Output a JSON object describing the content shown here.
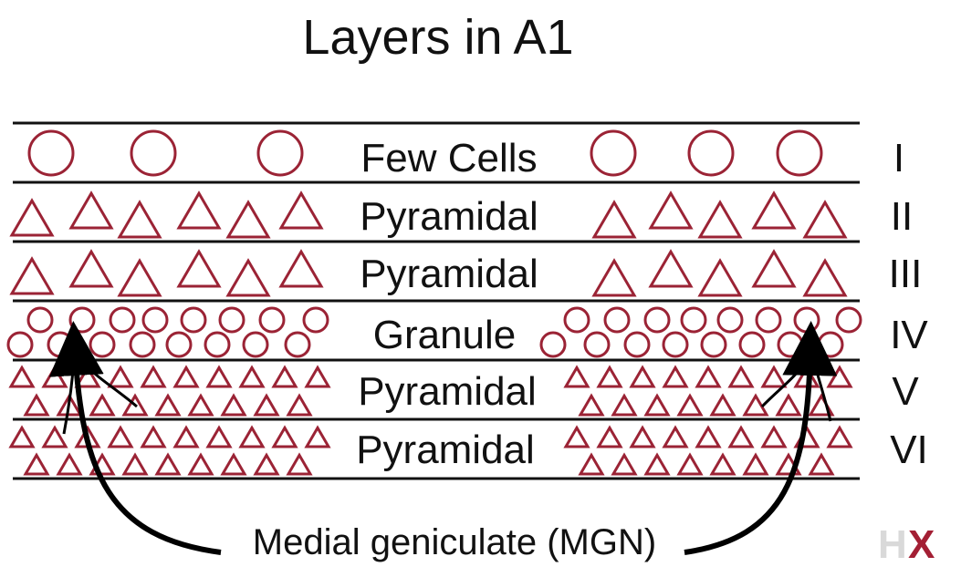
{
  "title": "Layers in A1",
  "layers": [
    {
      "cell_label": "Few Cells",
      "numeral": "I",
      "cell_shape": "circle-icon"
    },
    {
      "cell_label": "Pyramidal",
      "numeral": "II",
      "cell_shape": "triangle-icon"
    },
    {
      "cell_label": "Pyramidal",
      "numeral": "III",
      "cell_shape": "triangle-icon"
    },
    {
      "cell_label": "Granule",
      "numeral": "IV",
      "cell_shape": "circle-icon"
    },
    {
      "cell_label": "Pyramidal",
      "numeral": "V",
      "cell_shape": "triangle-icon"
    },
    {
      "cell_label": "Pyramidal",
      "numeral": "VI",
      "cell_shape": "triangle-icon"
    }
  ],
  "input_label": "Medial geniculate (MGN)",
  "logo": {
    "text": "HX",
    "colors": [
      "#d9d9d9",
      "#a31f34"
    ]
  },
  "colors": {
    "cell": "#9b2335",
    "line": "#111111",
    "arrow": "#000000"
  }
}
